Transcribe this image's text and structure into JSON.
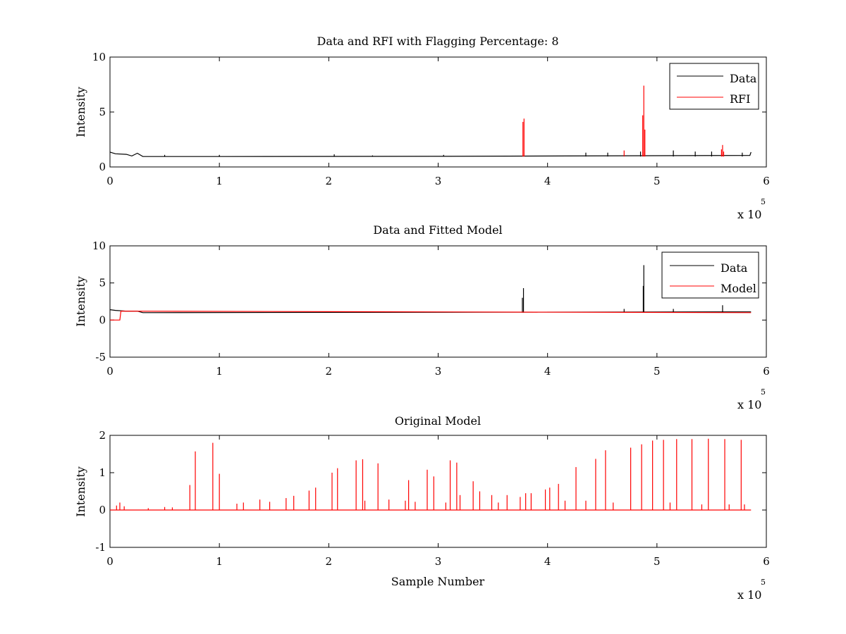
{
  "chart_data": [
    {
      "type": "line",
      "title": "Data and RFI with Flagging Percentage: 8",
      "xlabel": "",
      "ylabel": "Intensity",
      "xlim": [
        0,
        600000
      ],
      "ylim": [
        0,
        10
      ],
      "xticks": [
        0,
        1,
        2,
        3,
        4,
        5,
        6
      ],
      "yticks": [
        0,
        5,
        10
      ],
      "x_exponent": {
        "base": "x 10",
        "power": "5"
      },
      "legend": {
        "position": "top-right",
        "entries": [
          {
            "name": "Data",
            "color": "#000000"
          },
          {
            "name": "RFI",
            "color": "#ff0000"
          }
        ]
      },
      "series": [
        {
          "name": "Data",
          "color": "#000000",
          "baseline": 0.95,
          "points": [
            [
              0,
              1.35
            ],
            [
              5000,
              1.2
            ],
            [
              15000,
              1.15
            ],
            [
              20000,
              1.0
            ],
            [
              25000,
              1.25
            ],
            [
              30000,
              0.95
            ],
            [
              100000,
              0.95
            ],
            [
              300000,
              0.97
            ],
            [
              585000,
              1.05
            ],
            [
              586000,
              1.35
            ]
          ],
          "spikes": [
            [
              50000,
              1.1
            ],
            [
              100000,
              1.1
            ],
            [
              205000,
              1.15
            ],
            [
              240000,
              1.05
            ],
            [
              305000,
              1.1
            ],
            [
              435000,
              1.3
            ],
            [
              455000,
              1.3
            ],
            [
              485000,
              1.4
            ],
            [
              515000,
              1.5
            ],
            [
              535000,
              1.4
            ],
            [
              550000,
              1.4
            ],
            [
              578000,
              1.3
            ]
          ]
        },
        {
          "name": "RFI",
          "color": "#ff0000",
          "spikes": [
            [
              377500,
              4.1
            ],
            [
              378500,
              4.4
            ],
            [
              487000,
              4.7
            ],
            [
              488000,
              7.4
            ],
            [
              489000,
              3.4
            ],
            [
              470000,
              1.5
            ],
            [
              559000,
              1.6
            ],
            [
              560000,
              2.0
            ],
            [
              561000,
              1.4
            ]
          ]
        }
      ]
    },
    {
      "type": "line",
      "title": "Data and Fitted Model",
      "xlabel": "",
      "ylabel": "Intensity",
      "xlim": [
        0,
        600000
      ],
      "ylim": [
        -5,
        10
      ],
      "xticks": [
        0,
        1,
        2,
        3,
        4,
        5,
        6
      ],
      "yticks": [
        -5,
        0,
        5,
        10
      ],
      "x_exponent": {
        "base": "x 10",
        "power": "5"
      },
      "legend": {
        "position": "top-right",
        "entries": [
          {
            "name": "Data",
            "color": "#000000"
          },
          {
            "name": "Model",
            "color": "#ff0000"
          }
        ]
      },
      "series": [
        {
          "name": "Data",
          "color": "#000000",
          "baseline": 1.0,
          "points": [
            [
              0,
              1.4
            ],
            [
              5000,
              1.3
            ],
            [
              15000,
              1.2
            ],
            [
              25000,
              1.2
            ],
            [
              30000,
              1.0
            ],
            [
              586000,
              1.1
            ]
          ],
          "spikes": [
            [
              378000,
              4.3
            ],
            [
              377000,
              3.0
            ],
            [
              488000,
              7.4
            ],
            [
              487500,
              4.6
            ],
            [
              560000,
              2.0
            ],
            [
              470000,
              1.5
            ],
            [
              515000,
              1.5
            ]
          ]
        },
        {
          "name": "Model",
          "color": "#ff0000",
          "points": [
            [
              0,
              0.0
            ],
            [
              9000,
              0.0
            ],
            [
              10000,
              1.2
            ],
            [
              586000,
              1.0
            ]
          ]
        }
      ]
    },
    {
      "type": "line",
      "title": "Original Model",
      "xlabel": "Sample Number",
      "ylabel": "Intensity",
      "xlim": [
        0,
        600000
      ],
      "ylim": [
        -1,
        2
      ],
      "xticks": [
        0,
        1,
        2,
        3,
        4,
        5,
        6
      ],
      "yticks": [
        -1,
        0,
        1,
        2
      ],
      "x_exponent": {
        "base": "x 10",
        "power": "5"
      },
      "series": [
        {
          "name": "",
          "color": "#ff0000",
          "baseline": 0.0,
          "x_end": 586000,
          "spikes": [
            [
              6000,
              0.12
            ],
            [
              9000,
              0.2
            ],
            [
              13000,
              0.1
            ],
            [
              35000,
              0.05
            ],
            [
              50000,
              0.08
            ],
            [
              57000,
              0.07
            ],
            [
              73000,
              0.67
            ],
            [
              78000,
              1.57
            ],
            [
              94000,
              1.8
            ],
            [
              100000,
              0.97
            ],
            [
              116000,
              0.17
            ],
            [
              122000,
              0.2
            ],
            [
              137000,
              0.28
            ],
            [
              146000,
              0.22
            ],
            [
              161000,
              0.32
            ],
            [
              168000,
              0.38
            ],
            [
              182000,
              0.52
            ],
            [
              188000,
              0.6
            ],
            [
              203000,
              1.0
            ],
            [
              208000,
              1.12
            ],
            [
              225000,
              1.33
            ],
            [
              231000,
              1.36
            ],
            [
              233000,
              0.25
            ],
            [
              245000,
              1.25
            ],
            [
              255000,
              0.28
            ],
            [
              270000,
              0.25
            ],
            [
              273000,
              0.8
            ],
            [
              279000,
              0.22
            ],
            [
              290000,
              1.08
            ],
            [
              296000,
              0.9
            ],
            [
              307000,
              0.2
            ],
            [
              311000,
              1.33
            ],
            [
              317000,
              1.27
            ],
            [
              320000,
              0.4
            ],
            [
              332000,
              0.77
            ],
            [
              338000,
              0.5
            ],
            [
              349000,
              0.4
            ],
            [
              355000,
              0.2
            ],
            [
              363000,
              0.4
            ],
            [
              375000,
              0.35
            ],
            [
              380000,
              0.45
            ],
            [
              385000,
              0.45
            ],
            [
              398000,
              0.55
            ],
            [
              402000,
              0.6
            ],
            [
              410000,
              0.7
            ],
            [
              416000,
              0.25
            ],
            [
              426000,
              1.15
            ],
            [
              435000,
              0.25
            ],
            [
              444000,
              1.37
            ],
            [
              453000,
              1.6
            ],
            [
              460000,
              0.2
            ],
            [
              476000,
              1.67
            ],
            [
              486000,
              1.76
            ],
            [
              496000,
              1.86
            ],
            [
              506000,
              1.88
            ],
            [
              512000,
              0.2
            ],
            [
              518000,
              1.9
            ],
            [
              532000,
              1.9
            ],
            [
              541000,
              0.15
            ],
            [
              547000,
              1.91
            ],
            [
              562000,
              1.9
            ],
            [
              577000,
              1.88
            ],
            [
              566000,
              0.15
            ],
            [
              580000,
              0.15
            ]
          ]
        }
      ]
    }
  ]
}
